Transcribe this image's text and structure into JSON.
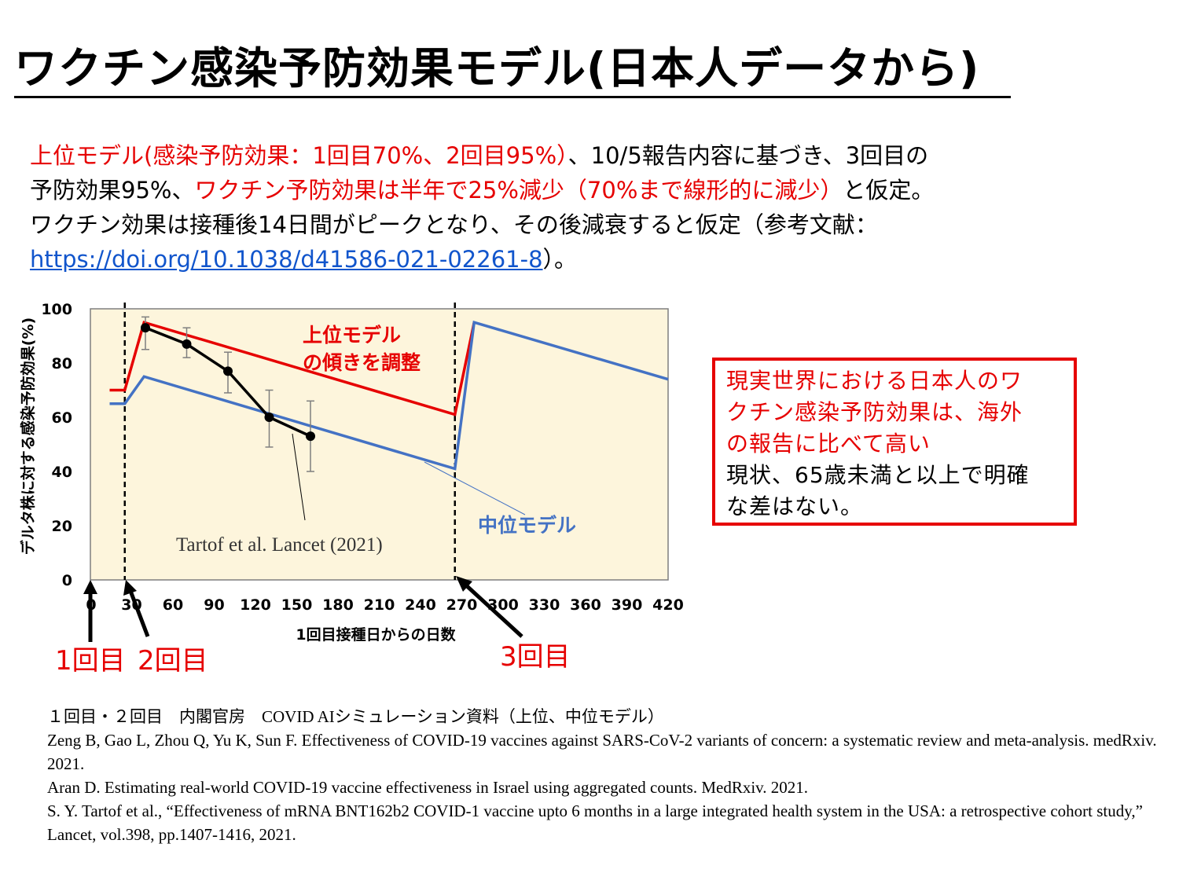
{
  "title": "ワクチン感染予防効果モデル(日本人データから)",
  "intro": {
    "line1_red": "上位モデル(感染予防効果：1回目70%、2回目95%）",
    "line1_black": "、10/5報告内容に基づき、3回目の",
    "line2_black": "予防効果95%、",
    "line2_red": "ワクチン予防効果は半年で25%減少（70%まで線形的に減少）",
    "line2_tail": "と仮定。",
    "line3": "ワクチン効果は接種後14日間がピークとなり、その後減衰すると仮定（参考文献：",
    "link": "https://doi.org/10.1038/d41586-021-02261-8",
    "line4_tail": "）。"
  },
  "chart_data": {
    "type": "line",
    "xlabel": "1回目接種日からの日数",
    "ylabel": "デルタ株に対する感染予防効果(%)",
    "xlim": [
      0,
      420
    ],
    "ylim": [
      0,
      100
    ],
    "xticks": [
      "0",
      "30",
      "60",
      "90",
      "120",
      "150",
      "180",
      "210",
      "240",
      "270",
      "300",
      "330",
      "360",
      "390",
      "420"
    ],
    "yticks": [
      "0",
      "20",
      "40",
      "60",
      "80",
      "100"
    ],
    "grid": false,
    "background": "#fdf5dc",
    "vlines_x": [
      25,
      265
    ],
    "series": [
      {
        "name": "上位モデル",
        "color": "#e60000",
        "x": [
          14,
          25,
          39,
          265,
          279
        ],
        "y": [
          70,
          70,
          95,
          61,
          95
        ]
      },
      {
        "name": "中位モデル",
        "color": "#4472c4",
        "x": [
          14,
          25,
          39,
          265,
          279,
          420
        ],
        "y": [
          65,
          65,
          75,
          41,
          95,
          74
        ]
      },
      {
        "name": "Tartof et al. Lancet (2021)",
        "color": "#000000",
        "x": [
          40,
          70,
          100,
          130,
          160
        ],
        "y": [
          93,
          87,
          77,
          60,
          53
        ],
        "err_lo": [
          85,
          82,
          69,
          49,
          40
        ],
        "err_hi": [
          97,
          93,
          84,
          70,
          66
        ]
      }
    ],
    "annotations": {
      "upper_label_1": "上位モデル",
      "upper_label_2": "の傾きを調整",
      "middle_label": "中位モデル",
      "tartof_label": "Tartof et al. Lancet (2021)",
      "dose1": "1回目",
      "dose2": "2回目",
      "dose3": "3回目"
    }
  },
  "note": {
    "red_1": "現実世界における日本人のワ",
    "red_2": "クチン感染予防効果は、海外",
    "red_3": "の報告に比べて高い",
    "black_1": "現状、65歳未満と以上で明確",
    "black_2": "な差はない。"
  },
  "references": [
    "１回目・２回目　内閣官房　COVID AIシミュレーション資料（上位、中位モデル）",
    "Zeng B, Gao L, Zhou Q, Yu K, Sun F. Effectiveness of COVID-19 vaccines against SARS-CoV-2 variants of concern: a systematic review and meta-analysis. medRxiv. 2021.",
    "Aran D. Estimating real-world COVID-19 vaccine effectiveness in Israel using aggregated counts. MedRxiv. 2021.",
    "S. Y. Tartof et al., “Effectiveness of mRNA BNT162b2 COVID-1 vaccine upto 6 months in a large integrated health system in the USA: a retrospective cohort study,” Lancet, vol.398, pp.1407-1416, 2021."
  ]
}
